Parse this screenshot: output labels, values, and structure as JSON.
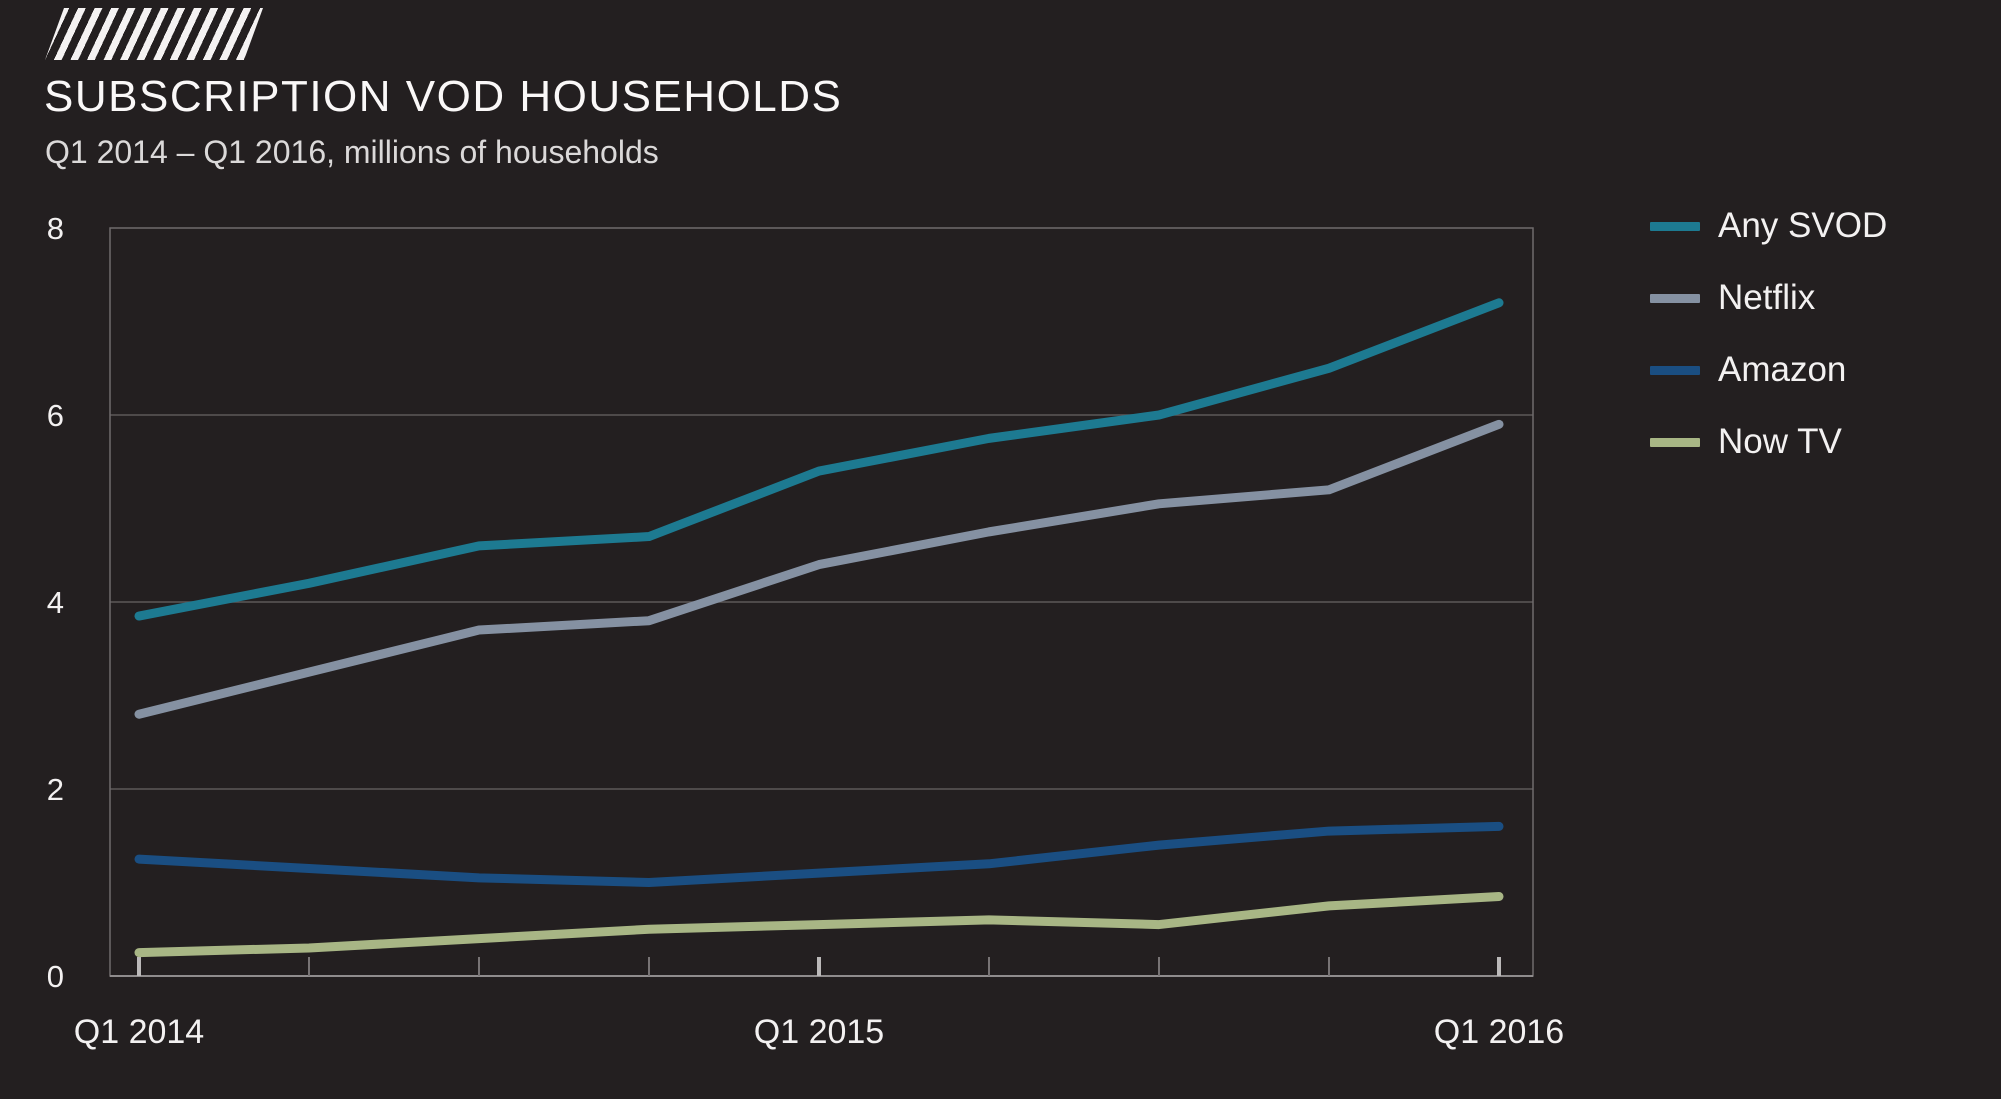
{
  "header": {
    "title": "SUBSCRIPTION VOD HOUSEHOLDS",
    "subtitle": "Q1 2014 – Q1 2016, millions of households"
  },
  "brand": {
    "logo": "diagonal-hatched-stripes"
  },
  "chart_data": {
    "type": "line",
    "title": "SUBSCRIPTION VOD HOUSEHOLDS",
    "subtitle": "Q1 2014 – Q1 2016, millions of households",
    "units": "millions of households",
    "x": [
      "Q1 2014",
      "Q2 2014",
      "Q3 2014",
      "Q4 2014",
      "Q1 2015",
      "Q2 2015",
      "Q3 2015",
      "Q4 2015",
      "Q1 2016"
    ],
    "x_axis_labels": [
      {
        "index": 0,
        "label": "Q1 2014"
      },
      {
        "index": 4,
        "label": "Q1 2015"
      },
      {
        "index": 8,
        "label": "Q1 2016"
      }
    ],
    "series": [
      {
        "name": "Any SVOD",
        "color": "#1d7a91",
        "values": [
          3.85,
          4.2,
          4.6,
          4.7,
          5.4,
          5.75,
          6.0,
          6.5,
          7.2
        ]
      },
      {
        "name": "Netflix",
        "color": "#8591a2",
        "values": [
          2.8,
          3.25,
          3.7,
          3.8,
          4.4,
          4.75,
          5.05,
          5.2,
          5.9
        ]
      },
      {
        "name": "Amazon",
        "color": "#1a4e82",
        "values": [
          1.25,
          1.15,
          1.05,
          1.0,
          1.1,
          1.2,
          1.4,
          1.55,
          1.6
        ]
      },
      {
        "name": "Now TV",
        "color": "#a8b685",
        "values": [
          0.25,
          0.3,
          0.4,
          0.5,
          0.55,
          0.6,
          0.55,
          0.75,
          0.85
        ]
      }
    ],
    "ylim": [
      0,
      8
    ],
    "yticks": [
      0,
      2,
      4,
      6,
      8
    ],
    "xlabel": "",
    "ylabel": "",
    "grid": "horizontal",
    "legend_position": "right"
  },
  "colors": {
    "background": "#231f20",
    "grid": "#5c5859",
    "plot_border": "#6f6b6c",
    "axis_line": "#8f8c8d",
    "tick_minor": "#787475",
    "tick_major": "#bbb9b9",
    "text": "#f3f1f1"
  }
}
